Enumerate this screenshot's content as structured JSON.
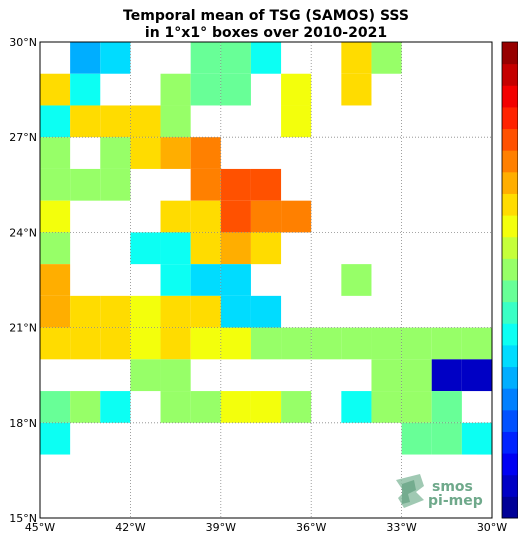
{
  "chart_data": {
    "type": "heatmap",
    "title": "Temporal mean of TSG (SAMOS) SSS",
    "subtitle": "in 1°x1° boxes over 2010-2021",
    "xlabel": "",
    "ylabel": "",
    "x_range_lon": [
      -45,
      -30
    ],
    "y_range_lat": [
      15,
      30
    ],
    "x_ticks": [
      {
        "value": -45,
        "label": "45°W"
      },
      {
        "value": -42,
        "label": "42°W"
      },
      {
        "value": -39,
        "label": "39°W"
      },
      {
        "value": -36,
        "label": "36°W"
      },
      {
        "value": -33,
        "label": "33°W"
      },
      {
        "value": -30,
        "label": "30°W"
      }
    ],
    "y_ticks": [
      {
        "value": 30,
        "label": "30°N"
      },
      {
        "value": 27,
        "label": "27°N"
      },
      {
        "value": 24,
        "label": "24°N"
      },
      {
        "value": 21,
        "label": "21°N"
      },
      {
        "value": 18,
        "label": "18°N"
      },
      {
        "value": 15,
        "label": "15°N"
      }
    ],
    "grid": true,
    "grid_style": "dotted",
    "colormap": "jet",
    "colorbar_position": "right",
    "colorbar_levels": 22,
    "value_scale": "normalized 0-1 position on the (unlabeled) colorbar",
    "cells": [
      {
        "lon": -44,
        "lat": 29,
        "v": 0.28
      },
      {
        "lon": -43,
        "lat": 29,
        "v": 0.34
      },
      {
        "lon": -40,
        "lat": 29,
        "v": 0.46
      },
      {
        "lon": -39,
        "lat": 29,
        "v": 0.46
      },
      {
        "lon": -38,
        "lat": 29,
        "v": 0.4
      },
      {
        "lon": -35,
        "lat": 29,
        "v": 0.66
      },
      {
        "lon": -34,
        "lat": 29,
        "v": 0.54
      },
      {
        "lon": -45,
        "lat": 28,
        "v": 0.66
      },
      {
        "lon": -44,
        "lat": 28,
        "v": 0.4
      },
      {
        "lon": -41,
        "lat": 28,
        "v": 0.54
      },
      {
        "lon": -40,
        "lat": 28,
        "v": 0.46
      },
      {
        "lon": -39,
        "lat": 28,
        "v": 0.46
      },
      {
        "lon": -37,
        "lat": 28,
        "v": 0.6
      },
      {
        "lon": -35,
        "lat": 28,
        "v": 0.66
      },
      {
        "lon": -45,
        "lat": 27,
        "v": 0.4
      },
      {
        "lon": -44,
        "lat": 27,
        "v": 0.66
      },
      {
        "lon": -43,
        "lat": 27,
        "v": 0.66
      },
      {
        "lon": -42,
        "lat": 27,
        "v": 0.66
      },
      {
        "lon": -41,
        "lat": 27,
        "v": 0.54
      },
      {
        "lon": -37,
        "lat": 27,
        "v": 0.6
      },
      {
        "lon": -45,
        "lat": 26,
        "v": 0.54
      },
      {
        "lon": -43,
        "lat": 26,
        "v": 0.5
      },
      {
        "lon": -42,
        "lat": 26,
        "v": 0.66
      },
      {
        "lon": -41,
        "lat": 26,
        "v": 0.7
      },
      {
        "lon": -40,
        "lat": 26,
        "v": 0.76
      },
      {
        "lon": -45,
        "lat": 25,
        "v": 0.54
      },
      {
        "lon": -44,
        "lat": 25,
        "v": 0.5
      },
      {
        "lon": -43,
        "lat": 25,
        "v": 0.54
      },
      {
        "lon": -40,
        "lat": 25,
        "v": 0.76
      },
      {
        "lon": -39,
        "lat": 25,
        "v": 0.8
      },
      {
        "lon": -38,
        "lat": 25,
        "v": 0.8
      },
      {
        "lon": -45,
        "lat": 24,
        "v": 0.6
      },
      {
        "lon": -41,
        "lat": 24,
        "v": 0.66
      },
      {
        "lon": -40,
        "lat": 24,
        "v": 0.66
      },
      {
        "lon": -39,
        "lat": 24,
        "v": 0.8
      },
      {
        "lon": -38,
        "lat": 24,
        "v": 0.76
      },
      {
        "lon": -37,
        "lat": 24,
        "v": 0.76
      },
      {
        "lon": -45,
        "lat": 23,
        "v": 0.54
      },
      {
        "lon": -42,
        "lat": 23,
        "v": 0.4
      },
      {
        "lon": -41,
        "lat": 23,
        "v": 0.4
      },
      {
        "lon": -40,
        "lat": 23,
        "v": 0.66
      },
      {
        "lon": -39,
        "lat": 23,
        "v": 0.7
      },
      {
        "lon": -38,
        "lat": 23,
        "v": 0.66
      },
      {
        "lon": -45,
        "lat": 22,
        "v": 0.7
      },
      {
        "lon": -41,
        "lat": 22,
        "v": 0.4
      },
      {
        "lon": -40,
        "lat": 22,
        "v": 0.34
      },
      {
        "lon": -39,
        "lat": 22,
        "v": 0.34
      },
      {
        "lon": -35,
        "lat": 22,
        "v": 0.54
      },
      {
        "lon": -45,
        "lat": 21,
        "v": 0.7
      },
      {
        "lon": -44,
        "lat": 21,
        "v": 0.66
      },
      {
        "lon": -43,
        "lat": 21,
        "v": 0.66
      },
      {
        "lon": -42,
        "lat": 21,
        "v": 0.6
      },
      {
        "lon": -41,
        "lat": 21,
        "v": 0.66
      },
      {
        "lon": -40,
        "lat": 21,
        "v": 0.66
      },
      {
        "lon": -39,
        "lat": 21,
        "v": 0.34
      },
      {
        "lon": -38,
        "lat": 21,
        "v": 0.34
      },
      {
        "lon": -45,
        "lat": 20,
        "v": 0.66
      },
      {
        "lon": -44,
        "lat": 20,
        "v": 0.66
      },
      {
        "lon": -43,
        "lat": 20,
        "v": 0.66
      },
      {
        "lon": -42,
        "lat": 20,
        "v": 0.6
      },
      {
        "lon": -41,
        "lat": 20,
        "v": 0.66
      },
      {
        "lon": -40,
        "lat": 20,
        "v": 0.6
      },
      {
        "lon": -39,
        "lat": 20,
        "v": 0.6
      },
      {
        "lon": -38,
        "lat": 20,
        "v": 0.5
      },
      {
        "lon": -37,
        "lat": 20,
        "v": 0.54
      },
      {
        "lon": -36,
        "lat": 20,
        "v": 0.54
      },
      {
        "lon": -35,
        "lat": 20,
        "v": 0.54
      },
      {
        "lon": -34,
        "lat": 20,
        "v": 0.54
      },
      {
        "lon": -33,
        "lat": 20,
        "v": 0.5
      },
      {
        "lon": -32,
        "lat": 20,
        "v": 0.5
      },
      {
        "lon": -31,
        "lat": 20,
        "v": 0.5
      },
      {
        "lon": -42,
        "lat": 19,
        "v": 0.54
      },
      {
        "lon": -41,
        "lat": 19,
        "v": 0.54
      },
      {
        "lon": -34,
        "lat": 19,
        "v": 0.5
      },
      {
        "lon": -33,
        "lat": 19,
        "v": 0.5
      },
      {
        "lon": -32,
        "lat": 19,
        "v": 0.08
      },
      {
        "lon": -31,
        "lat": 19,
        "v": 0.05
      },
      {
        "lon": -45,
        "lat": 18,
        "v": 0.46
      },
      {
        "lon": -44,
        "lat": 18,
        "v": 0.54
      },
      {
        "lon": -43,
        "lat": 18,
        "v": 0.4
      },
      {
        "lon": -41,
        "lat": 18,
        "v": 0.54
      },
      {
        "lon": -40,
        "lat": 18,
        "v": 0.54
      },
      {
        "lon": -39,
        "lat": 18,
        "v": 0.6
      },
      {
        "lon": -38,
        "lat": 18,
        "v": 0.6
      },
      {
        "lon": -37,
        "lat": 18,
        "v": 0.54
      },
      {
        "lon": -35,
        "lat": 18,
        "v": 0.4
      },
      {
        "lon": -34,
        "lat": 18,
        "v": 0.54
      },
      {
        "lon": -33,
        "lat": 18,
        "v": 0.54
      },
      {
        "lon": -32,
        "lat": 18,
        "v": 0.46
      },
      {
        "lon": -45,
        "lat": 17,
        "v": 0.4
      },
      {
        "lon": -33,
        "lat": 17,
        "v": 0.46
      },
      {
        "lon": -32,
        "lat": 17,
        "v": 0.46
      },
      {
        "lon": -31,
        "lat": 17,
        "v": 0.4
      },
      {
        "lon": -30.5,
        "lat": 17,
        "v": 0.4
      }
    ]
  },
  "logo": {
    "line1": "smos",
    "line2": "pi-mep",
    "color": "#6fa98b"
  },
  "colors": {
    "grid": "#888888",
    "axis": "#000000",
    "background": "#ffffff"
  }
}
